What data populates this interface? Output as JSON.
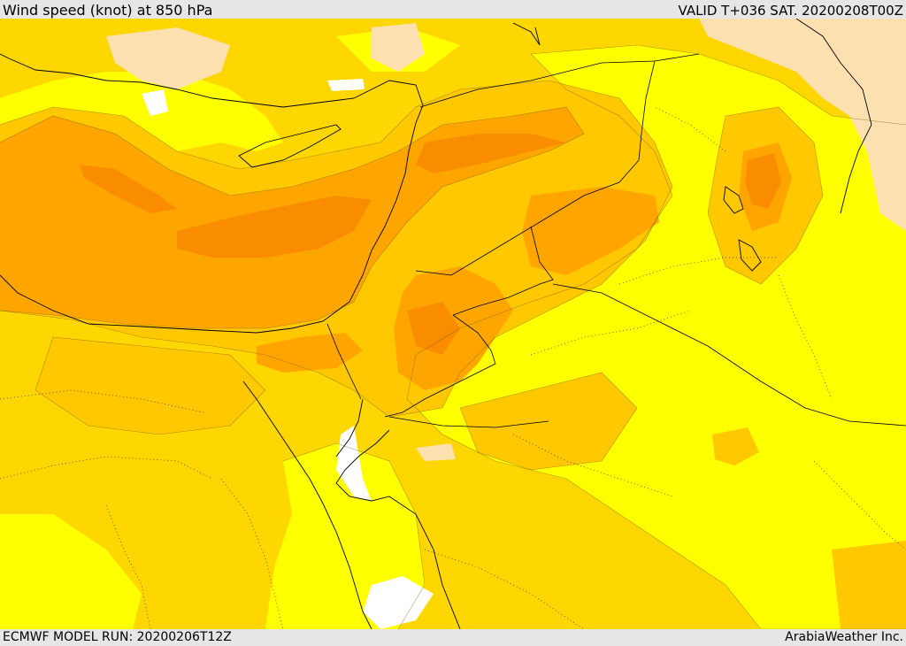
{
  "header": {
    "title": "Wind speed (knot) at 850 hPa",
    "valid": "VALID T+036 SAT. 20200208T00Z"
  },
  "footer": {
    "model_run": "ECMWF MODEL RUN: 20200206T12Z",
    "credit": "ArabiaWeather Inc."
  },
  "map": {
    "field": "wind speed",
    "level": "850 hPa",
    "colors": {
      "band_1": "#ffff00",
      "band_2": "#ffd700",
      "band_3": "#ffc800",
      "band_4": "#ffa500",
      "band_5": "#fa8c00",
      "calm_pale": "#fde0b0",
      "calm_white": "#ffffff"
    }
  }
}
